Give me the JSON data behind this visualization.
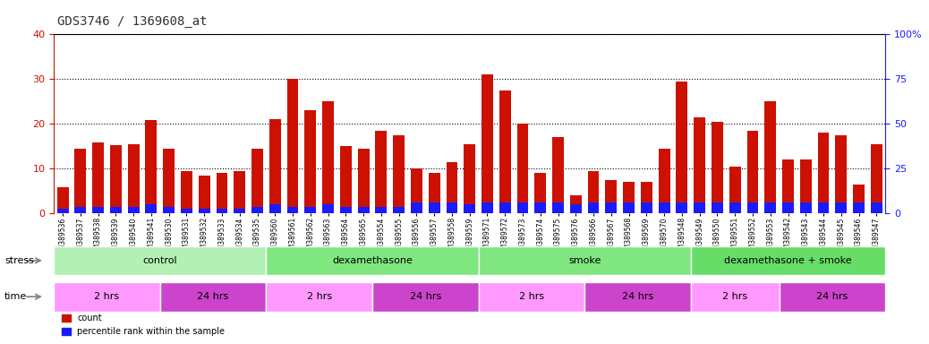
{
  "title": "GDS3746 / 1369608_at",
  "samples": [
    "GSM389536",
    "GSM389537",
    "GSM389538",
    "GSM389539",
    "GSM389540",
    "GSM389541",
    "GSM389530",
    "GSM389531",
    "GSM389532",
    "GSM389533",
    "GSM389534",
    "GSM389535",
    "GSM389560",
    "GSM389561",
    "GSM389562",
    "GSM389563",
    "GSM389564",
    "GSM389565",
    "GSM389554",
    "GSM389555",
    "GSM389556",
    "GSM389557",
    "GSM389558",
    "GSM389559",
    "GSM389571",
    "GSM389572",
    "GSM389573",
    "GSM389574",
    "GSM389575",
    "GSM389576",
    "GSM389566",
    "GSM389567",
    "GSM389568",
    "GSM389569",
    "GSM389570",
    "GSM389548",
    "GSM389549",
    "GSM389550",
    "GSM389551",
    "GSM389552",
    "GSM389553",
    "GSM389542",
    "GSM389543",
    "GSM389544",
    "GSM389545",
    "GSM389546",
    "GSM389547"
  ],
  "count_values": [
    5.8,
    14.5,
    15.8,
    15.3,
    15.5,
    20.8,
    14.5,
    9.5,
    8.5,
    9.0,
    9.5,
    14.5,
    21.0,
    30.0,
    23.0,
    25.0,
    15.0,
    14.5,
    18.5,
    17.5,
    10.0,
    9.0,
    11.5,
    15.5,
    31.0,
    27.5,
    20.0,
    9.0,
    17.0,
    4.0,
    9.5,
    7.5,
    7.0,
    7.0,
    14.5,
    29.5,
    21.5,
    20.5,
    10.5,
    18.5,
    25.0,
    12.0,
    12.0,
    18.0,
    17.5,
    6.5,
    15.5
  ],
  "percentile_values": [
    1.0,
    1.5,
    1.5,
    1.5,
    1.5,
    2.0,
    1.5,
    1.0,
    1.0,
    1.0,
    1.0,
    1.5,
    2.0,
    1.5,
    1.5,
    2.0,
    1.5,
    1.5,
    1.5,
    1.5,
    2.5,
    2.5,
    2.5,
    2.0,
    2.5,
    2.5,
    2.5,
    2.5,
    2.5,
    2.0,
    2.5,
    2.5,
    2.5,
    2.5,
    2.5,
    2.5,
    2.5,
    2.5,
    2.5,
    2.5,
    2.5,
    2.5,
    2.5,
    2.5,
    2.5,
    2.5,
    2.5
  ],
  "bar_color": "#cc1100",
  "percentile_color": "#1a1aff",
  "left_ylim": [
    0,
    40
  ],
  "right_ylim": [
    0,
    100
  ],
  "left_yticks": [
    0,
    10,
    20,
    30,
    40
  ],
  "right_yticks": [
    0,
    25,
    50,
    75,
    100
  ],
  "stress_groups": [
    {
      "label": "control",
      "start": 0,
      "end": 12,
      "color": "#b3f0b3"
    },
    {
      "label": "dexamethasone",
      "start": 12,
      "end": 24,
      "color": "#80e680"
    },
    {
      "label": "smoke",
      "start": 24,
      "end": 36,
      "color": "#80e680"
    },
    {
      "label": "dexamethasone + smoke",
      "start": 36,
      "end": 47,
      "color": "#66dd66"
    }
  ],
  "time_groups": [
    {
      "label": "2 hrs",
      "start": 0,
      "end": 6,
      "color": "#ff99ff"
    },
    {
      "label": "24 hrs",
      "start": 6,
      "end": 12,
      "color": "#cc44cc"
    },
    {
      "label": "2 hrs",
      "start": 12,
      "end": 18,
      "color": "#ff99ff"
    },
    {
      "label": "24 hrs",
      "start": 18,
      "end": 24,
      "color": "#cc44cc"
    },
    {
      "label": "2 hrs",
      "start": 24,
      "end": 30,
      "color": "#ff99ff"
    },
    {
      "label": "24 hrs",
      "start": 30,
      "end": 36,
      "color": "#cc44cc"
    },
    {
      "label": "2 hrs",
      "start": 36,
      "end": 41,
      "color": "#ff99ff"
    },
    {
      "label": "24 hrs",
      "start": 41,
      "end": 47,
      "color": "#cc44cc"
    }
  ],
  "stress_label": "stress",
  "time_label": "time",
  "legend_count": "count",
  "legend_percentile": "percentile rank within the sample",
  "bg_color": "#ffffff",
  "title_color": "#333333",
  "left_axis_color": "#cc1100",
  "right_axis_color": "#1a1aff"
}
